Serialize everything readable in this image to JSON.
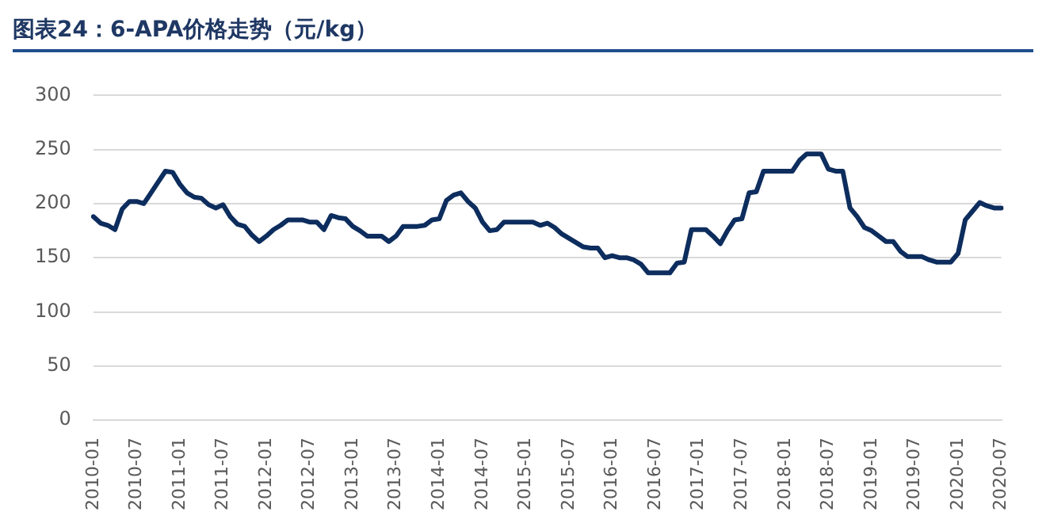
{
  "chart_data": {
    "type": "line",
    "title": "图表24：6-APA价格走势（元/kg）",
    "categories": [
      "2010-01",
      null,
      null,
      null,
      null,
      null,
      "2010-07",
      null,
      null,
      null,
      null,
      null,
      "2011-01",
      null,
      null,
      null,
      null,
      null,
      "2011-07",
      null,
      null,
      null,
      null,
      null,
      "2012-01",
      null,
      null,
      null,
      null,
      null,
      "2012-07",
      null,
      null,
      null,
      null,
      null,
      "2013-01",
      null,
      null,
      null,
      null,
      null,
      "2013-07",
      null,
      null,
      null,
      null,
      null,
      "2014-01",
      null,
      null,
      null,
      null,
      null,
      "2014-07",
      null,
      null,
      null,
      null,
      null,
      "2015-01",
      null,
      null,
      null,
      null,
      null,
      "2015-07",
      null,
      null,
      null,
      null,
      null,
      "2016-01",
      null,
      null,
      null,
      null,
      null,
      "2016-07",
      null,
      null,
      null,
      null,
      null,
      "2017-01",
      null,
      null,
      null,
      null,
      null,
      "2017-07",
      null,
      null,
      null,
      null,
      null,
      "2018-01",
      null,
      null,
      null,
      null,
      null,
      "2018-07",
      null,
      null,
      null,
      null,
      null,
      "2019-01",
      null,
      null,
      null,
      null,
      null,
      "2019-07",
      null,
      null,
      null,
      null,
      null,
      "2020-01",
      null,
      null,
      null,
      null,
      null,
      "2020-07"
    ],
    "series": [
      {
        "color": "#0d2d5e",
        "values": [
          188,
          182,
          180,
          176,
          195,
          202,
          202,
          200,
          210,
          220,
          230,
          229,
          218,
          210,
          206,
          205,
          199,
          196,
          199,
          188,
          181,
          179,
          171,
          165,
          170,
          176,
          180,
          185,
          185,
          185,
          183,
          183,
          176,
          189,
          187,
          186,
          179,
          175,
          170,
          170,
          170,
          165,
          170,
          179,
          179,
          179,
          180,
          185,
          186,
          203,
          208,
          210,
          202,
          196,
          183,
          175,
          176,
          183,
          183,
          183,
          183,
          183,
          180,
          182,
          178,
          172,
          168,
          164,
          160,
          159,
          159,
          150,
          152,
          150,
          150,
          148,
          144,
          136,
          136,
          136,
          136,
          145,
          146,
          176,
          176,
          176,
          170,
          163,
          175,
          185,
          186,
          210,
          211,
          230,
          230,
          230,
          230,
          230,
          240,
          246,
          246,
          246,
          232,
          230,
          230,
          196,
          188,
          178,
          175,
          170,
          165,
          165,
          156,
          151,
          151,
          151,
          148,
          146,
          146,
          146,
          154,
          185,
          193,
          201,
          198,
          196,
          196
        ]
      }
    ],
    "ylim": [
      0,
      300
    ],
    "yticks": [
      0,
      50,
      100,
      150,
      200,
      250,
      300
    ],
    "grid": "y",
    "legend": false,
    "marker": "none",
    "line_style": "solid"
  }
}
